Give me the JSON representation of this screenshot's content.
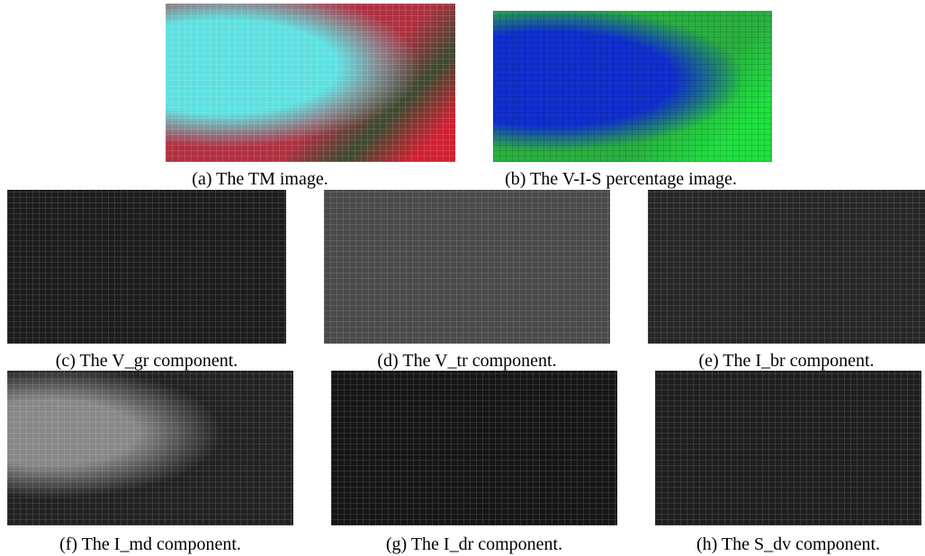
{
  "figure": {
    "panels": [
      {
        "caption": "(a) The TM image."
      },
      {
        "caption": "(b) The V-I-S percentage image."
      },
      {
        "caption": "(c) The V_gr component."
      },
      {
        "caption": "(d) The V_tr component."
      },
      {
        "caption": "(e) The I_br component."
      },
      {
        "caption": "(f) The I_md component."
      },
      {
        "caption": "(g) The I_dr component."
      },
      {
        "caption": "(h) The S_dv component."
      }
    ]
  }
}
